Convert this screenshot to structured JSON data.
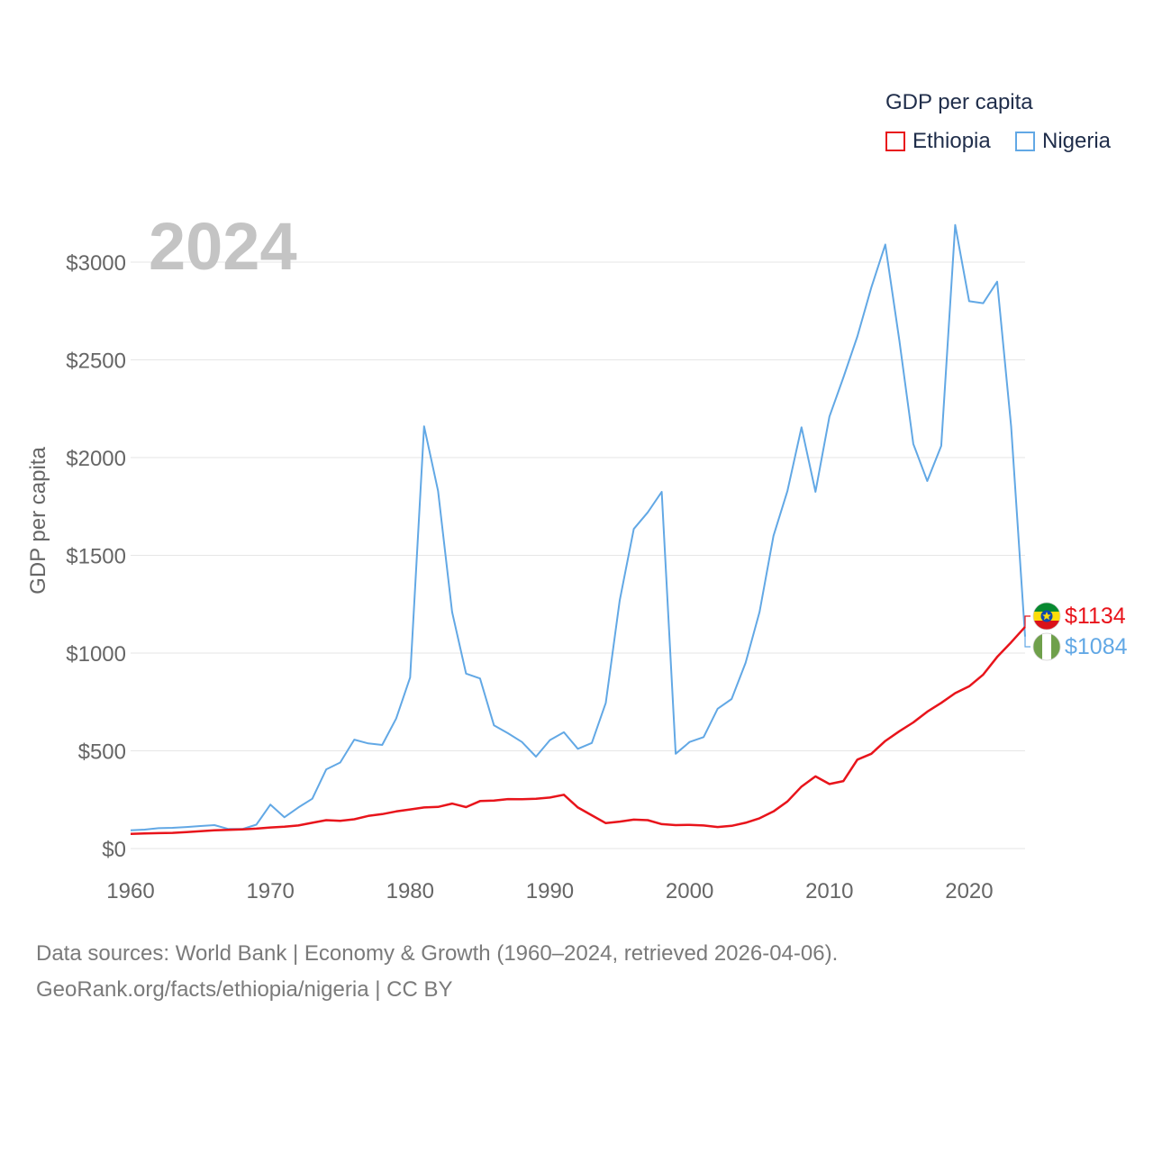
{
  "legend": {
    "title": "GDP per capita",
    "items": [
      {
        "label": "Ethiopia",
        "color": "#e8141b"
      },
      {
        "label": "Nigeria",
        "color": "#62a8e5"
      }
    ]
  },
  "footer": {
    "line1": "Data sources: World Bank | Economy & Growth (1960–2024, retrieved 2026-04-06).",
    "line2": "GeoRank.org/facts/ethiopia/nigeria | CC BY"
  },
  "chart_data": {
    "type": "line",
    "year_label": "2024",
    "ylabel": "GDP per capita",
    "xlim": [
      1960,
      2024
    ],
    "ylim": [
      0,
      3000
    ],
    "x_ticks": [
      1960,
      1970,
      1980,
      1990,
      2000,
      2010,
      2020
    ],
    "y_ticks": [
      0,
      500,
      1000,
      1500,
      2000,
      2500,
      3000
    ],
    "y_tick_labels": [
      "$0",
      "$500",
      "$1000",
      "$1500",
      "$2000",
      "$2500",
      "$3000"
    ],
    "x": [
      1960,
      1961,
      1962,
      1963,
      1964,
      1965,
      1966,
      1967,
      1968,
      1969,
      1970,
      1971,
      1972,
      1973,
      1974,
      1975,
      1976,
      1977,
      1978,
      1979,
      1980,
      1981,
      1982,
      1983,
      1984,
      1985,
      1986,
      1987,
      1988,
      1989,
      1990,
      1991,
      1992,
      1993,
      1994,
      1995,
      1996,
      1997,
      1998,
      1999,
      2000,
      2001,
      2002,
      2003,
      2004,
      2005,
      2006,
      2007,
      2008,
      2009,
      2010,
      2011,
      2012,
      2013,
      2014,
      2015,
      2016,
      2017,
      2018,
      2019,
      2020,
      2021,
      2022,
      2023,
      2024
    ],
    "series": [
      {
        "name": "Ethiopia",
        "color": "#e8141b",
        "end_label": "$1134",
        "flag": "ethiopia-flag",
        "values": [
          75,
          77,
          79,
          80,
          84,
          89,
          93,
          96,
          98,
          102,
          108,
          112,
          118,
          132,
          145,
          142,
          150,
          167,
          176,
          190,
          200,
          210,
          213,
          230,
          212,
          243,
          245,
          253,
          252,
          255,
          261,
          275,
          210,
          170,
          130,
          138,
          148,
          145,
          125,
          120,
          121,
          118,
          110,
          116,
          132,
          155,
          190,
          241,
          317,
          369,
          330,
          345,
          455,
          485,
          550,
          600,
          645,
          700,
          745,
          795,
          830,
          890,
          980,
          1055,
          1134
        ]
      },
      {
        "name": "Nigeria",
        "color": "#62a8e5",
        "end_label": "$1084",
        "flag": "nigeria-flag",
        "values": [
          93,
          97,
          104,
          106,
          110,
          115,
          120,
          100,
          100,
          122,
          225,
          160,
          210,
          255,
          405,
          440,
          557,
          538,
          530,
          665,
          875,
          2160,
          1830,
          1210,
          895,
          870,
          630,
          590,
          545,
          470,
          555,
          595,
          510,
          540,
          745,
          1270,
          1635,
          1720,
          1825,
          485,
          545,
          570,
          715,
          765,
          950,
          1210,
          1600,
          1830,
          2155,
          1825,
          2210,
          2410,
          2620,
          2870,
          3090,
          2600,
          2070,
          1880,
          2060,
          3190,
          2800,
          2790,
          2900,
          2160,
          1084
        ]
      }
    ]
  }
}
